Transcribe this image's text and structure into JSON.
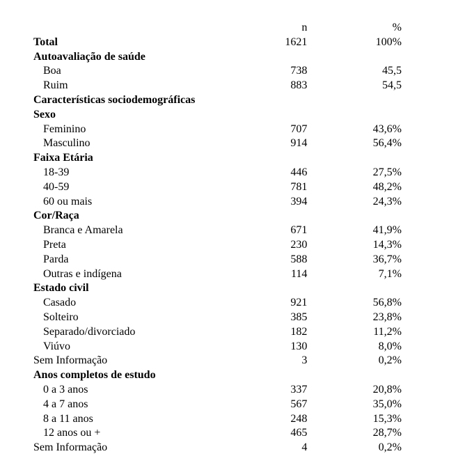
{
  "header": {
    "n": "n",
    "p": "%"
  },
  "rows": [
    {
      "label": "Total",
      "n": "1621",
      "p": "100%",
      "bold": true,
      "indent": false
    },
    {
      "label": "Autoavaliação de saúde",
      "n": "",
      "p": "",
      "bold": true,
      "indent": false
    },
    {
      "label": "Boa",
      "n": "738",
      "p": "45,5",
      "bold": false,
      "indent": true
    },
    {
      "label": "Ruim",
      "n": "883",
      "p": "54,5",
      "bold": false,
      "indent": true
    },
    {
      "label": "Características sociodemográficas",
      "n": "",
      "p": "",
      "bold": true,
      "indent": false
    },
    {
      "label": "Sexo",
      "n": "",
      "p": "",
      "bold": true,
      "indent": false
    },
    {
      "label": "Feminino",
      "n": "707",
      "p": "43,6%",
      "bold": false,
      "indent": true
    },
    {
      "label": "Masculino",
      "n": "914",
      "p": "56,4%",
      "bold": false,
      "indent": true
    },
    {
      "label": "Faixa Etária",
      "n": "",
      "p": "",
      "bold": true,
      "indent": false
    },
    {
      "label": "18-39",
      "n": "446",
      "p": "27,5%",
      "bold": false,
      "indent": true
    },
    {
      "label": "40-59",
      "n": "781",
      "p": "48,2%",
      "bold": false,
      "indent": true
    },
    {
      "label": "60 ou mais",
      "n": "394",
      "p": "24,3%",
      "bold": false,
      "indent": true
    },
    {
      "label": "Cor/Raça",
      "n": "",
      "p": "",
      "bold": true,
      "indent": false
    },
    {
      "label": "Branca e Amarela",
      "n": "671",
      "p": "41,9%",
      "bold": false,
      "indent": true
    },
    {
      "label": "Preta",
      "n": "230",
      "p": "14,3%",
      "bold": false,
      "indent": true
    },
    {
      "label": "Parda",
      "n": "588",
      "p": "36,7%",
      "bold": false,
      "indent": true
    },
    {
      "label": "Outras e indígena",
      "n": "114",
      "p": "7,1%",
      "bold": false,
      "indent": true
    },
    {
      "label": "Estado civil",
      "n": "",
      "p": "",
      "bold": true,
      "indent": false
    },
    {
      "label": "Casado",
      "n": "921",
      "p": "56,8%",
      "bold": false,
      "indent": true
    },
    {
      "label": "Solteiro",
      "n": "385",
      "p": "23,8%",
      "bold": false,
      "indent": true
    },
    {
      "label": "Separado/divorciado",
      "n": "182",
      "p": "11,2%",
      "bold": false,
      "indent": true
    },
    {
      "label": "Viúvo",
      "n": "130",
      "p": "8,0%",
      "bold": false,
      "indent": true
    },
    {
      "label": "Sem Informação",
      "n": "3",
      "p": "0,2%",
      "bold": false,
      "indent": false
    },
    {
      "label": "Anos completos de estudo",
      "n": "",
      "p": "",
      "bold": true,
      "indent": false
    },
    {
      "label": "0 a 3 anos",
      "n": "337",
      "p": "20,8%",
      "bold": false,
      "indent": true
    },
    {
      "label": "4 a 7 anos",
      "n": "567",
      "p": "35,0%",
      "bold": false,
      "indent": true
    },
    {
      "label": "8 a 11 anos",
      "n": "248",
      "p": "15,3%",
      "bold": false,
      "indent": true
    },
    {
      "label": "12 anos ou +",
      "n": "465",
      "p": "28,7%",
      "bold": false,
      "indent": true
    },
    {
      "label": "Sem Informação",
      "n": "4",
      "p": "0,2%",
      "bold": false,
      "indent": false
    }
  ]
}
